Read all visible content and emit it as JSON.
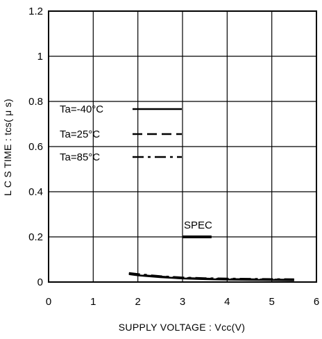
{
  "chart_data": {
    "type": "line",
    "title": "",
    "xlabel": "SUPPLY VOLTAGE : Vcc(V)",
    "ylabel": "L C S TIME : tcs( μ s)",
    "xlim": [
      0,
      6
    ],
    "ylim": [
      0,
      1.2
    ],
    "x_ticks": [
      0,
      1,
      2,
      3,
      4,
      5,
      6
    ],
    "x_tick_labels": [
      "0",
      "1",
      "2",
      "3",
      "4",
      "5",
      "6"
    ],
    "y_ticks": [
      0,
      0.2,
      0.4,
      0.6,
      0.8,
      1,
      1.2
    ],
    "y_tick_labels": [
      "0",
      "0.2",
      "0.4",
      "0.6",
      "0.8",
      "1",
      "1.2"
    ],
    "grid": true,
    "legend_position": "upper-left",
    "series": [
      {
        "name": "Ta=-40°C",
        "style": "solid",
        "x": [
          1.8,
          2.0,
          2.5,
          3.0,
          3.5,
          4.0,
          4.5,
          5.0,
          5.5
        ],
        "y": [
          0.035,
          0.03,
          0.022,
          0.016,
          0.013,
          0.011,
          0.01,
          0.009,
          0.008
        ]
      },
      {
        "name": "Ta=25°C",
        "style": "dashed",
        "x": [
          1.8,
          2.0,
          2.5,
          3.0,
          3.5,
          4.0,
          4.5,
          5.0,
          5.5
        ],
        "y": [
          0.037,
          0.032,
          0.024,
          0.018,
          0.015,
          0.013,
          0.012,
          0.011,
          0.01
        ]
      },
      {
        "name": "Ta=85°C",
        "style": "dashdot",
        "x": [
          1.8,
          2.0,
          2.5,
          3.0,
          3.5,
          4.0,
          4.5,
          5.0,
          5.5
        ],
        "y": [
          0.04,
          0.035,
          0.026,
          0.02,
          0.017,
          0.015,
          0.014,
          0.013,
          0.012
        ]
      }
    ],
    "annotations": [
      {
        "label": "SPEC",
        "x": [
          3.0,
          3.65
        ],
        "y": 0.2
      }
    ]
  },
  "colors": {
    "line": "#000000",
    "grid": "#000000",
    "background": "#ffffff"
  }
}
